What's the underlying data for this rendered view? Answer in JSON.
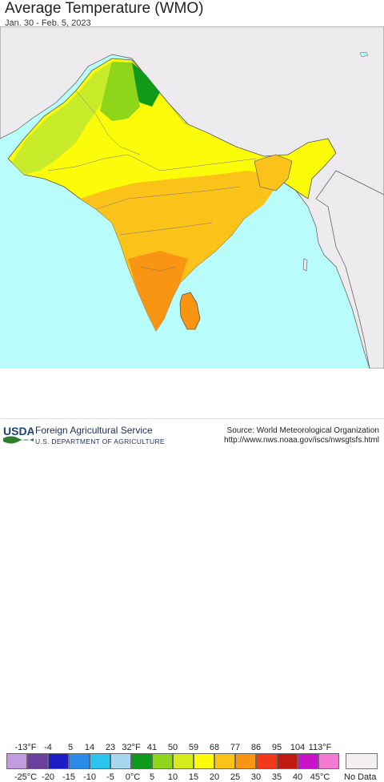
{
  "header": {
    "title": "Average Temperature (WMO)",
    "subtitle": "Jan. 30 - Feb. 5, 2023"
  },
  "colors": {
    "ocean": "#b8fdfc",
    "outside_land": "#eeebee",
    "border": "#555555"
  },
  "legend": {
    "fahrenheit_ticks": [
      "-13°F",
      "-4",
      "5",
      "14",
      "23",
      "32°F",
      "41",
      "50",
      "59",
      "68",
      "77",
      "86",
      "95",
      "104",
      "113°F"
    ],
    "celsius_ticks": [
      "-25°C",
      "-20",
      "-15",
      "-10",
      "-5",
      "0°C",
      "5",
      "10",
      "15",
      "20",
      "25",
      "30",
      "35",
      "40",
      "45°C"
    ],
    "colors": [
      "#c39be0",
      "#6b3fa0",
      "#1d1dc8",
      "#2a8be8",
      "#2cc4ee",
      "#a8d8f0",
      "#0f9a1a",
      "#8ed61a",
      "#d6ec1a",
      "#fbfb0a",
      "#fbc21a",
      "#f99512",
      "#f4391a",
      "#c21a12",
      "#c814c8",
      "#f47ad2"
    ],
    "no_data_label": "No Data",
    "no_data_color": "#f2eef2"
  },
  "footer": {
    "logo_text": "USDA",
    "agency": "Foreign Agricultural Service",
    "department": "U.S. DEPARTMENT OF AGRICULTURE",
    "source_line1": "Source: World Meteorological Organization",
    "source_line2": "http://www.nws.noaa.gov/iscs/nwsgtsfs.html"
  }
}
